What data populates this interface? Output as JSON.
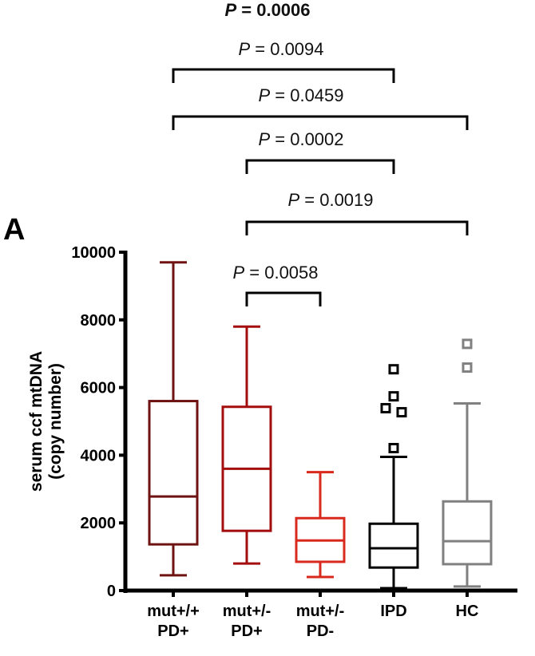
{
  "chart_data": {
    "type": "box",
    "panel_label": "A",
    "title": "",
    "ylabel_line1": "serum ccf mtDNA",
    "ylabel_line2": "(copy number)",
    "xlabel": "",
    "ylim": [
      0,
      10000
    ],
    "yticks": [
      0,
      2000,
      4000,
      6000,
      8000,
      10000
    ],
    "ytick_labels": [
      "0",
      "2000",
      "4000",
      "6000",
      "8000",
      "10000"
    ],
    "grid": false,
    "categories": [
      {
        "line1": "mut+/+",
        "line2": "PD+"
      },
      {
        "line1": "mut+/-",
        "line2": "PD+"
      },
      {
        "line1": "mut+/-",
        "line2": "PD-"
      },
      {
        "line1": "IPD",
        "line2": ""
      },
      {
        "line1": "HC",
        "line2": ""
      }
    ],
    "series": [
      {
        "name": "mut+/+ PD+",
        "color": "#6e1212",
        "whisker_low": 450,
        "q1": 1365,
        "median": 2780,
        "q3": 5600,
        "whisker_high": 9700,
        "outliers": []
      },
      {
        "name": "mut+/- PD+",
        "color": "#a30d0d",
        "whisker_low": 800,
        "q1": 1765,
        "median": 3600,
        "q3": 5430,
        "whisker_high": 7800,
        "outliers": []
      },
      {
        "name": "mut+/- PD-",
        "color": "#d8291c",
        "whisker_low": 400,
        "q1": 850,
        "median": 1480,
        "q3": 2140,
        "whisker_high": 3500,
        "outliers": []
      },
      {
        "name": "IPD",
        "color": "#000000",
        "whisker_low": 70,
        "q1": 680,
        "median": 1250,
        "q3": 1975,
        "whisker_high": 3950,
        "outliers": [
          6540,
          5740,
          5390,
          5270,
          4210
        ]
      },
      {
        "name": "HC",
        "color": "#808080",
        "whisker_low": 120,
        "q1": 780,
        "median": 1460,
        "q3": 2635,
        "whisker_high": 5530,
        "outliers": [
          7290,
          6590
        ]
      }
    ],
    "comparisons": [
      {
        "from": 0,
        "to": 2,
        "label_p": "P",
        "label_rest": " = 0.0006",
        "bold": true,
        "bracket": false
      },
      {
        "from": 0,
        "to": 3,
        "label_p": "P",
        "label_rest": " = 0.0094",
        "bold": false,
        "bracket": true
      },
      {
        "from": 0,
        "to": 4,
        "label_p": "P",
        "label_rest": " = 0.0459",
        "bold": false,
        "bracket": true
      },
      {
        "from": 1,
        "to": 3,
        "label_p": "P",
        "label_rest": " = 0.0002",
        "bold": false,
        "bracket": true
      },
      {
        "from": 1,
        "to": 4,
        "label_p": "P",
        "label_rest": " = 0.0019",
        "bold": false,
        "bracket": true
      },
      {
        "from": 1,
        "to": 2,
        "label_p": "P",
        "label_rest": " = 0.0058",
        "bold": false,
        "bracket": true
      }
    ]
  }
}
